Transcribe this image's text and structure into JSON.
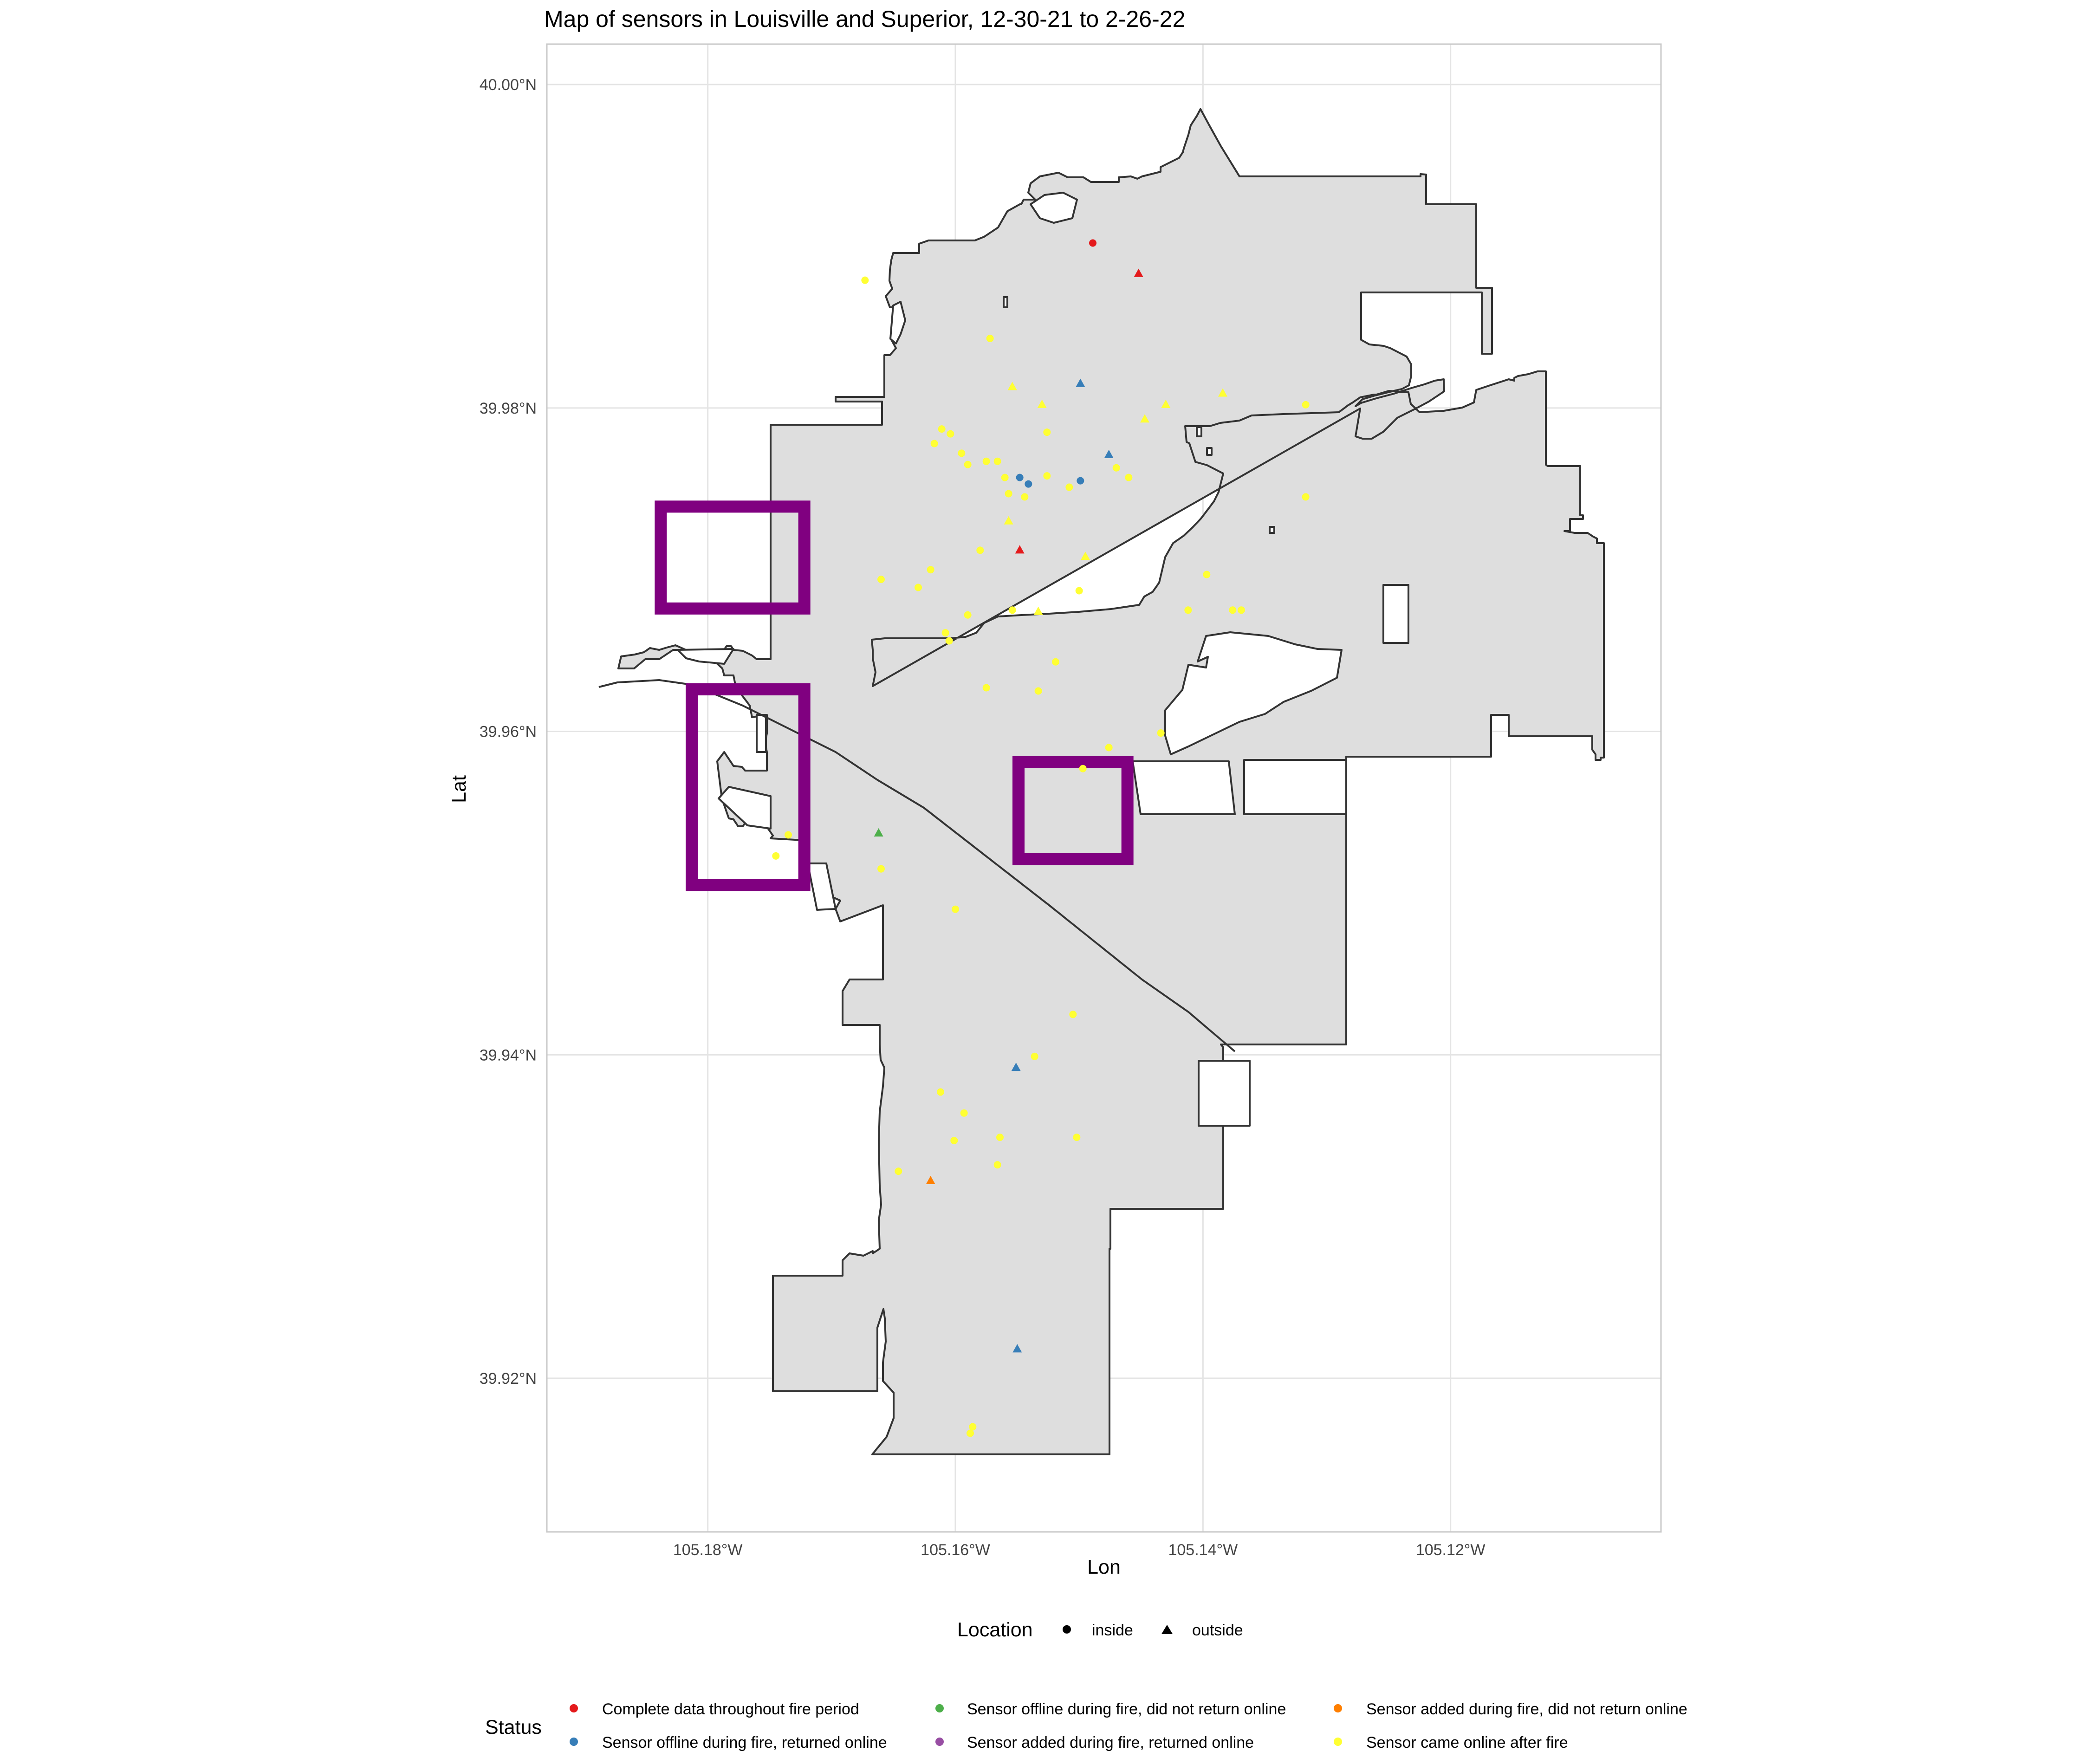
{
  "chart_data": {
    "type": "scatter",
    "title": "Map of sensors in Louisville and Superior, 12-30-21 to 2-26-22",
    "xlabel": "Lon",
    "ylabel": "Lat",
    "x_ticks": [
      "105.18°W",
      "105.16°W",
      "105.14°W",
      "105.12°W"
    ],
    "y_ticks": [
      "40.00°N",
      "39.98°N",
      "39.96°N",
      "39.94°N",
      "39.92°N"
    ],
    "xlim": [
      -105.193,
      -105.103
    ],
    "ylim": [
      39.9105,
      40.0025
    ],
    "x_tick_values": [
      -105.18,
      -105.16,
      -105.14,
      -105.12
    ],
    "y_tick_values": [
      40.0,
      39.98,
      39.96,
      39.94,
      39.92
    ],
    "grid": true,
    "legend_position": "bottom",
    "legend_location": {
      "title": "Location",
      "items": [
        {
          "label": "inside",
          "shape": "circle"
        },
        {
          "label": "outside",
          "shape": "triangle"
        }
      ]
    },
    "legend_status": {
      "title": "Status",
      "items": [
        {
          "label": "Complete data throughout fire period",
          "color": "#E41A1C"
        },
        {
          "label": "Sensor offline during fire, returned online",
          "color": "#377EB8"
        },
        {
          "label": "Sensor offline during fire, did not return online",
          "color": "#4DAF4A"
        },
        {
          "label": "Sensor added during fire, returned online",
          "color": "#984EA3"
        },
        {
          "label": "Sensor added during fire, did not return online",
          "color": "#FF7F00"
        },
        {
          "label": "Sensor came online after fire",
          "color": "#FFFF33"
        }
      ]
    },
    "boundary_fill": "#DEDEDE",
    "boundary_stroke": "#333333",
    "highlight_color": "#800080",
    "highlight_boxes": [
      {
        "lon": [
          -105.1838,
          -105.1722
        ],
        "lat": [
          39.9676,
          39.9739
        ]
      },
      {
        "lon": [
          -105.1813,
          -105.1722
        ],
        "lat": [
          39.9505,
          39.9626
        ]
      },
      {
        "lon": [
          -105.1549,
          -105.1461
        ],
        "lat": [
          39.9521,
          39.9581
        ]
      }
    ],
    "points": [
      {
        "lon": -105.1489,
        "lat": 39.9902,
        "status": 0,
        "shape": "circle"
      },
      {
        "lon": -105.1452,
        "lat": 39.9883,
        "status": 0,
        "shape": "triangle"
      },
      {
        "lon": -105.1548,
        "lat": 39.9712,
        "status": 0,
        "shape": "triangle"
      },
      {
        "lon": -105.1499,
        "lat": 39.9815,
        "status": 1,
        "shape": "triangle"
      },
      {
        "lon": -105.1476,
        "lat": 39.9771,
        "status": 1,
        "shape": "triangle"
      },
      {
        "lon": -105.1548,
        "lat": 39.9757,
        "status": 1,
        "shape": "circle"
      },
      {
        "lon": -105.1541,
        "lat": 39.9753,
        "status": 1,
        "shape": "circle"
      },
      {
        "lon": -105.1499,
        "lat": 39.9755,
        "status": 1,
        "shape": "circle"
      },
      {
        "lon": -105.1551,
        "lat": 39.9392,
        "status": 1,
        "shape": "triangle"
      },
      {
        "lon": -105.155,
        "lat": 39.9218,
        "status": 1,
        "shape": "triangle"
      },
      {
        "lon": -105.1662,
        "lat": 39.9537,
        "status": 2,
        "shape": "triangle"
      },
      {
        "lon": -105.162,
        "lat": 39.9322,
        "status": 4,
        "shape": "triangle"
      },
      {
        "lon": -105.1673,
        "lat": 39.9879,
        "status": 5,
        "shape": "circle"
      },
      {
        "lon": -105.1572,
        "lat": 39.9843,
        "status": 5,
        "shape": "circle"
      },
      {
        "lon": -105.1554,
        "lat": 39.9813,
        "status": 5,
        "shape": "triangle"
      },
      {
        "lon": -105.153,
        "lat": 39.9802,
        "status": 5,
        "shape": "triangle"
      },
      {
        "lon": -105.1384,
        "lat": 39.9809,
        "status": 5,
        "shape": "triangle"
      },
      {
        "lon": -105.1317,
        "lat": 39.9802,
        "status": 5,
        "shape": "circle"
      },
      {
        "lon": -105.143,
        "lat": 39.9802,
        "status": 5,
        "shape": "triangle"
      },
      {
        "lon": -105.1447,
        "lat": 39.9793,
        "status": 5,
        "shape": "triangle"
      },
      {
        "lon": -105.1526,
        "lat": 39.9785,
        "status": 5,
        "shape": "circle"
      },
      {
        "lon": -105.1611,
        "lat": 39.9787,
        "status": 5,
        "shape": "circle"
      },
      {
        "lon": -105.1604,
        "lat": 39.9784,
        "status": 5,
        "shape": "circle"
      },
      {
        "lon": -105.1617,
        "lat": 39.9778,
        "status": 5,
        "shape": "circle"
      },
      {
        "lon": -105.1595,
        "lat": 39.9772,
        "status": 5,
        "shape": "circle"
      },
      {
        "lon": -105.159,
        "lat": 39.9765,
        "status": 5,
        "shape": "circle"
      },
      {
        "lon": -105.1575,
        "lat": 39.9767,
        "status": 5,
        "shape": "circle"
      },
      {
        "lon": -105.1566,
        "lat": 39.9767,
        "status": 5,
        "shape": "circle"
      },
      {
        "lon": -105.156,
        "lat": 39.9757,
        "status": 5,
        "shape": "circle"
      },
      {
        "lon": -105.1557,
        "lat": 39.9747,
        "status": 5,
        "shape": "circle"
      },
      {
        "lon": -105.1544,
        "lat": 39.9745,
        "status": 5,
        "shape": "circle"
      },
      {
        "lon": -105.1526,
        "lat": 39.9758,
        "status": 5,
        "shape": "circle"
      },
      {
        "lon": -105.1508,
        "lat": 39.9751,
        "status": 5,
        "shape": "circle"
      },
      {
        "lon": -105.147,
        "lat": 39.9763,
        "status": 5,
        "shape": "circle"
      },
      {
        "lon": -105.146,
        "lat": 39.9757,
        "status": 5,
        "shape": "circle"
      },
      {
        "lon": -105.1317,
        "lat": 39.9745,
        "status": 5,
        "shape": "circle"
      },
      {
        "lon": -105.1557,
        "lat": 39.973,
        "status": 5,
        "shape": "triangle"
      },
      {
        "lon": -105.158,
        "lat": 39.9712,
        "status": 5,
        "shape": "circle"
      },
      {
        "lon": -105.1495,
        "lat": 39.9708,
        "status": 5,
        "shape": "triangle"
      },
      {
        "lon": -105.162,
        "lat": 39.97,
        "status": 5,
        "shape": "circle"
      },
      {
        "lon": -105.1397,
        "lat": 39.9697,
        "status": 5,
        "shape": "circle"
      },
      {
        "lon": -105.166,
        "lat": 39.9694,
        "status": 5,
        "shape": "circle"
      },
      {
        "lon": -105.163,
        "lat": 39.9689,
        "status": 5,
        "shape": "circle"
      },
      {
        "lon": -105.15,
        "lat": 39.9687,
        "status": 5,
        "shape": "circle"
      },
      {
        "lon": -105.1554,
        "lat": 39.9675,
        "status": 5,
        "shape": "circle"
      },
      {
        "lon": -105.159,
        "lat": 39.9672,
        "status": 5,
        "shape": "circle"
      },
      {
        "lon": -105.1533,
        "lat": 39.9674,
        "status": 5,
        "shape": "triangle"
      },
      {
        "lon": -105.1412,
        "lat": 39.9675,
        "status": 5,
        "shape": "circle"
      },
      {
        "lon": -105.1376,
        "lat": 39.9675,
        "status": 5,
        "shape": "circle"
      },
      {
        "lon": -105.1369,
        "lat": 39.9675,
        "status": 5,
        "shape": "circle"
      },
      {
        "lon": -105.1608,
        "lat": 39.9661,
        "status": 5,
        "shape": "circle"
      },
      {
        "lon": -105.1605,
        "lat": 39.9656,
        "status": 5,
        "shape": "circle"
      },
      {
        "lon": -105.1519,
        "lat": 39.9643,
        "status": 5,
        "shape": "circle"
      },
      {
        "lon": -105.1575,
        "lat": 39.9627,
        "status": 5,
        "shape": "circle"
      },
      {
        "lon": -105.1533,
        "lat": 39.9625,
        "status": 5,
        "shape": "circle"
      },
      {
        "lon": -105.1434,
        "lat": 39.9599,
        "status": 5,
        "shape": "circle"
      },
      {
        "lon": -105.1476,
        "lat": 39.959,
        "status": 5,
        "shape": "circle"
      },
      {
        "lon": -105.1497,
        "lat": 39.9577,
        "status": 5,
        "shape": "circle"
      },
      {
        "lon": -105.1735,
        "lat": 39.9536,
        "status": 5,
        "shape": "circle"
      },
      {
        "lon": -105.1745,
        "lat": 39.9523,
        "status": 5,
        "shape": "circle"
      },
      {
        "lon": -105.166,
        "lat": 39.9515,
        "status": 5,
        "shape": "circle"
      },
      {
        "lon": -105.16,
        "lat": 39.949,
        "status": 5,
        "shape": "circle"
      },
      {
        "lon": -105.1505,
        "lat": 39.9425,
        "status": 5,
        "shape": "circle"
      },
      {
        "lon": -105.1536,
        "lat": 39.9399,
        "status": 5,
        "shape": "circle"
      },
      {
        "lon": -105.1612,
        "lat": 39.9377,
        "status": 5,
        "shape": "circle"
      },
      {
        "lon": -105.1593,
        "lat": 39.9364,
        "status": 5,
        "shape": "circle"
      },
      {
        "lon": -105.1564,
        "lat": 39.9349,
        "status": 5,
        "shape": "circle"
      },
      {
        "lon": -105.1502,
        "lat": 39.9349,
        "status": 5,
        "shape": "circle"
      },
      {
        "lon": -105.1601,
        "lat": 39.9347,
        "status": 5,
        "shape": "circle"
      },
      {
        "lon": -105.1566,
        "lat": 39.9332,
        "status": 5,
        "shape": "circle"
      },
      {
        "lon": -105.1646,
        "lat": 39.9328,
        "status": 5,
        "shape": "circle"
      },
      {
        "lon": -105.1586,
        "lat": 39.917,
        "status": 5,
        "shape": "circle"
      },
      {
        "lon": -105.1588,
        "lat": 39.9166,
        "status": 5,
        "shape": "circle"
      }
    ]
  }
}
